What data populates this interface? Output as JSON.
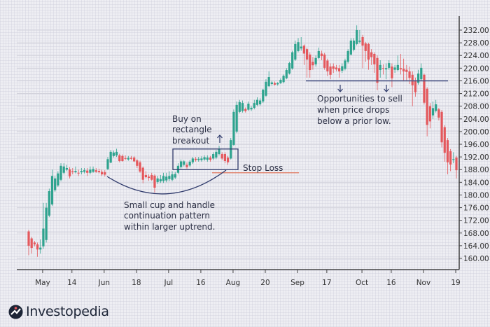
{
  "chart_data": {
    "type": "candlestick",
    "title": "",
    "xlabel": "",
    "ylabel": "",
    "ylim": [
      158,
      236
    ],
    "y_ticks": [
      160,
      164,
      168,
      172,
      176,
      180,
      184,
      188,
      192,
      196,
      200,
      204,
      208,
      212,
      216,
      220,
      224,
      228,
      232
    ],
    "y_tick_format": "2 decimals",
    "y_axis_side": "right",
    "grid": true,
    "candle_format": [
      "open",
      "high",
      "low",
      "close"
    ],
    "colors": {
      "up": "#2ea38e",
      "down": "#e4585c",
      "annotation": "#2f3a6b",
      "stop_loss": "#e0765c"
    },
    "periods": [
      {
        "label": "",
        "candles": [
          [
            168.5,
            169,
            161,
            164
          ],
          [
            166.3,
            166.8,
            161.5,
            163.3
          ],
          [
            165,
            165.5,
            163.8,
            164.4
          ],
          [
            164.4,
            165,
            160.5,
            162.8
          ],
          [
            162.8,
            166,
            161.5,
            163.4
          ]
        ]
      },
      {
        "label": "May",
        "candles": [
          [
            163.8,
            177.5,
            163,
            169.4
          ],
          [
            165.8,
            177.5,
            165,
            176
          ],
          [
            173.5,
            182,
            173,
            181.2
          ],
          [
            177,
            188,
            176.5,
            186
          ],
          [
            181.5,
            186,
            181,
            185.2
          ],
          [
            183,
            187.5,
            182.5,
            186.8
          ],
          [
            184.8,
            190,
            184.3,
            189.2
          ],
          [
            187,
            190,
            186.5,
            189
          ],
          [
            188,
            189.5,
            187.5,
            188.5
          ],
          [
            188.1,
            188.8,
            185.2,
            185.9
          ]
        ]
      },
      {
        "label": "14",
        "candles": [
          [
            187.5,
            188.5,
            186.5,
            187.2
          ],
          [
            187.2,
            189,
            186.8,
            187.6
          ],
          [
            187,
            188,
            186,
            186.8
          ],
          [
            187.2,
            188.5,
            186.5,
            187.6
          ],
          [
            187.3,
            188.5,
            186.8,
            187.8
          ],
          [
            187.7,
            188.5,
            186,
            187
          ],
          [
            187,
            189,
            186.5,
            188
          ],
          [
            187.3,
            189,
            187,
            188.2
          ],
          [
            187.8,
            188.5,
            187,
            187.3
          ],
          [
            187.6,
            188.3,
            186.8,
            187.2
          ],
          [
            187.3,
            188,
            186,
            186.5
          ]
        ]
      },
      {
        "label": "Jun",
        "candles": [
          [
            187.2,
            187.8,
            185.8,
            186.4
          ],
          [
            188.2,
            192,
            187.8,
            191.3
          ],
          [
            190.2,
            194.2,
            190,
            193.6
          ],
          [
            192.3,
            194,
            191.8,
            193.4
          ],
          [
            192.5,
            194.6,
            192,
            193.6
          ],
          [
            192.5,
            193,
            190.3,
            190.7
          ],
          [
            192.3,
            192.8,
            190.5,
            190.7
          ],
          [
            191.6,
            192.5,
            191,
            191.4
          ],
          [
            191.2,
            192.3,
            190.8,
            191.7
          ],
          [
            191.7,
            192.3,
            191,
            191.4
          ],
          [
            191.8,
            192.2,
            190.4,
            190.6
          ]
        ]
      },
      {
        "label": "18",
        "candles": [
          [
            190.9,
            191.3,
            188.5,
            189.2
          ],
          [
            190.3,
            190.8,
            187,
            187.4
          ],
          [
            188.6,
            189,
            183.7,
            184.8
          ],
          [
            186.3,
            187.5,
            185.3,
            185.6
          ],
          [
            185.8,
            186.5,
            184.5,
            185.4
          ],
          [
            186.3,
            187,
            184.5,
            184.8
          ],
          [
            186.1,
            186.5,
            180.8,
            182.3
          ],
          [
            184.1,
            186,
            183.5,
            185.2
          ],
          [
            184.3,
            186.3,
            183.8,
            185
          ],
          [
            184.4,
            187,
            183.8,
            186
          ],
          [
            184.6,
            187,
            184,
            185.8
          ]
        ]
      },
      {
        "label": "Jul",
        "candles": [
          [
            185,
            187.5,
            184.3,
            186
          ],
          [
            184.8,
            187.5,
            184.3,
            186.5
          ],
          [
            185.5,
            187.3,
            185,
            186.6
          ],
          [
            187,
            190,
            186.5,
            189.2
          ],
          [
            188.8,
            191.2,
            188.3,
            190.6
          ],
          [
            189.5,
            191,
            189,
            190.6
          ],
          [
            189.5,
            190.3,
            188.3,
            188.8
          ],
          [
            189.3,
            191,
            188.8,
            190.5
          ],
          [
            190.3,
            192,
            189.8,
            191.5
          ],
          [
            191.4,
            192,
            190.5,
            191
          ],
          [
            191,
            192,
            190.5,
            191.4
          ]
        ]
      },
      {
        "label": "16",
        "candles": [
          [
            191,
            192.2,
            190.5,
            191.5
          ],
          [
            191.2,
            192.5,
            190.8,
            191.9
          ],
          [
            191.1,
            192.5,
            190.5,
            191.8
          ],
          [
            191.8,
            192.3,
            190.5,
            191.1
          ],
          [
            191.5,
            193.5,
            191,
            192.9
          ],
          [
            191.8,
            194.2,
            191.3,
            193.6
          ],
          [
            192.9,
            195.5,
            192.5,
            194.4
          ],
          [
            192.9,
            193.5,
            191,
            191.5
          ],
          [
            192.9,
            193.5,
            190,
            190.7
          ],
          [
            191.8,
            192.3,
            189.5,
            190.3
          ],
          [
            191.5,
            198,
            191.2,
            197.3
          ]
        ]
      },
      {
        "label": "Aug",
        "candles": [
          [
            195.8,
            207,
            195.5,
            206.2
          ],
          [
            200,
            209.5,
            199.5,
            208.4
          ],
          [
            206.2,
            210,
            205.8,
            209.3
          ],
          [
            206.5,
            209.8,
            206,
            209
          ],
          [
            207.1,
            207.6,
            206,
            206.5
          ],
          [
            206.9,
            209.5,
            206.5,
            208.8
          ],
          [
            207,
            208,
            206.5,
            207.5
          ],
          [
            207.5,
            210,
            207,
            209
          ],
          [
            208.4,
            210.8,
            208,
            210
          ],
          [
            208.6,
            210.5,
            208.2,
            209.8
          ],
          [
            209.5,
            213.5,
            209,
            213.2
          ]
        ]
      },
      {
        "label": "20",
        "candles": [
          [
            211.3,
            216.5,
            211,
            215.7
          ],
          [
            214.3,
            219,
            214,
            217.2
          ],
          [
            215,
            216,
            214.5,
            215.5
          ],
          [
            215.3,
            215.8,
            214.5,
            214.8
          ],
          [
            214.9,
            215.6,
            214.5,
            215.3
          ],
          [
            215.3,
            216.8,
            215,
            216.3
          ],
          [
            215.6,
            218,
            215.2,
            217.6
          ],
          [
            216.8,
            220,
            216.5,
            219.4
          ],
          [
            218.3,
            222,
            218,
            221.6
          ],
          [
            219.9,
            225.5,
            219.5,
            225
          ],
          [
            222.7,
            228.7,
            222.3,
            227.6
          ]
        ]
      },
      {
        "label": "Sep",
        "candles": [
          [
            225.4,
            229.5,
            225,
            228.2
          ],
          [
            226.2,
            229.8,
            225.5,
            226.8
          ],
          [
            227.1,
            227.5,
            221,
            224.6
          ],
          [
            226,
            226.5,
            217,
            222.7
          ],
          [
            224.3,
            225,
            217,
            219.4
          ],
          [
            222,
            223.5,
            219.5,
            220.9
          ],
          [
            221.2,
            224,
            220.5,
            223.2
          ],
          [
            223.2,
            226.5,
            222.8,
            225.4
          ],
          [
            224.6,
            225.5,
            222.5,
            223.8
          ],
          [
            224.3,
            224.8,
            219.5,
            220.1
          ]
        ]
      },
      {
        "label": "17",
        "candles": [
          [
            222.4,
            223,
            217.5,
            219
          ],
          [
            220.5,
            221.5,
            216.5,
            217.9
          ],
          [
            220.6,
            221.5,
            218.5,
            219.8
          ],
          [
            220.2,
            221,
            219,
            219.6
          ],
          [
            220,
            221,
            217,
            219
          ],
          [
            219.2,
            221.5,
            218.5,
            220.6
          ],
          [
            219.8,
            223,
            219.3,
            222.4
          ],
          [
            222,
            226,
            221.5,
            225.4
          ],
          [
            224.3,
            229.5,
            224,
            228.7
          ],
          [
            225.8,
            229.5,
            225.3,
            228.7
          ],
          [
            227.6,
            233.5,
            227.2,
            232
          ],
          [
            228.3,
            232,
            227.8,
            228.7
          ]
        ]
      },
      {
        "label": "Oct",
        "candles": [
          [
            229.8,
            230.5,
            220,
            227.1
          ],
          [
            227.8,
            228.3,
            222,
            225.4
          ],
          [
            227.6,
            228,
            219.5,
            222.7
          ],
          [
            225,
            226,
            221,
            223.5
          ],
          [
            224.5,
            225,
            218.5,
            221.2
          ],
          [
            223.2,
            224,
            213,
            215.4
          ],
          [
            219.4,
            222.5,
            217,
            221
          ],
          [
            220,
            221.2,
            218,
            219.8
          ],
          [
            219.6,
            221.5,
            216.5,
            220
          ],
          [
            220.1,
            222.5,
            219.5,
            221.6
          ]
        ]
      },
      {
        "label": "16",
        "candles": [
          [
            220.5,
            221.5,
            214,
            216.8
          ],
          [
            219.5,
            221,
            218.5,
            220.2
          ],
          [
            219.4,
            224,
            219,
            221
          ],
          [
            220,
            224.5,
            218,
            219.6
          ],
          [
            219.8,
            223,
            216,
            219
          ],
          [
            219.5,
            221,
            216,
            218.8
          ],
          [
            219,
            220.5,
            215,
            216.9
          ],
          [
            217.9,
            219,
            208,
            214.6
          ],
          [
            216.1,
            217,
            211,
            212.4
          ],
          [
            215.4,
            219.5,
            214.8,
            218.3
          ],
          [
            216.5,
            221.5,
            216,
            220.1
          ]
        ]
      },
      {
        "label": "Nov",
        "candles": [
          [
            217.9,
            218.3,
            208.5,
            209.1
          ],
          [
            213.5,
            214,
            198.5,
            202.1
          ],
          [
            208,
            209,
            201,
            203.2
          ],
          [
            205.1,
            209.5,
            204,
            207.4
          ],
          [
            206.5,
            210,
            206,
            208.6
          ],
          [
            207,
            207.5,
            203.5,
            204.4
          ],
          [
            206.2,
            206.8,
            195,
            196.6
          ],
          [
            201.4,
            202,
            190.5,
            193.3
          ],
          [
            197.3,
            198,
            186.5,
            190.3
          ],
          [
            193.8,
            194.5,
            187.5,
            189.6
          ],
          [
            191,
            193.5,
            190,
            191.3
          ]
        ]
      },
      {
        "label": "19",
        "candles": [
          [
            191.8,
            192.3,
            185.2,
            187.8
          ]
        ]
      }
    ],
    "annotations": {
      "breakout": {
        "lines": [
          "Buy on",
          "rectangle",
          "breakout"
        ],
        "rectangle_price_range": [
          188,
          194.5
        ]
      },
      "stop_loss": {
        "label": "Stop Loss",
        "price": 187
      },
      "cup": {
        "lines": [
          "Small cup and handle",
          "continuation pattern",
          "within larger uptrend."
        ]
      },
      "sell": {
        "lines": [
          "Opportunities to sell",
          "when price drops",
          "below a prior low."
        ],
        "support_price": 216
      }
    }
  },
  "logo": {
    "text": "Investopedia"
  }
}
